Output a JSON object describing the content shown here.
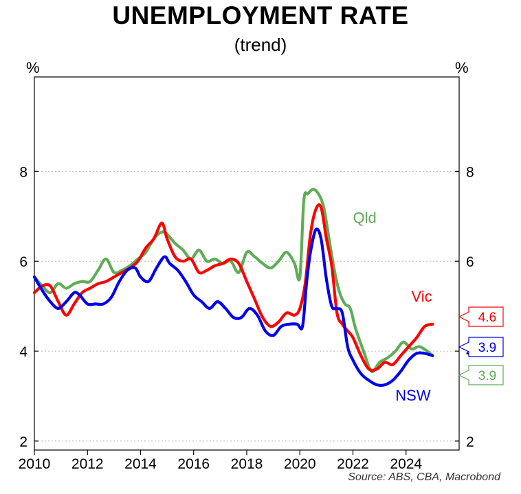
{
  "chart_data": {
    "type": "line",
    "title": "UNEMPLOYMENT RATE",
    "subtitle": "(trend)",
    "y_unit_left": "%",
    "y_unit_right": "%",
    "ylim": [
      1.8,
      10.1
    ],
    "xlim": [
      2010,
      2026
    ],
    "y_ticks": [
      2,
      4,
      6,
      8
    ],
    "x_ticks": [
      2010,
      2012,
      2014,
      2016,
      2018,
      2020,
      2022,
      2024
    ],
    "grid": "horizontal dotted",
    "source": "Source: ABS, CBA, Macrobond",
    "series": [
      {
        "name": "NSW",
        "color": "#0000ee",
        "end_value": "3.9",
        "x": [
          2010.0,
          2010.3,
          2010.6,
          2010.9,
          2011.2,
          2011.5,
          2011.7,
          2012.0,
          2012.3,
          2012.6,
          2012.9,
          2013.2,
          2013.5,
          2013.8,
          2014.0,
          2014.3,
          2014.6,
          2014.9,
          2015.1,
          2015.4,
          2015.7,
          2016.0,
          2016.3,
          2016.6,
          2016.9,
          2017.2,
          2017.5,
          2017.8,
          2018.1,
          2018.4,
          2018.7,
          2019.0,
          2019.3,
          2019.6,
          2019.9,
          2020.1,
          2020.25,
          2020.4,
          2020.6,
          2020.8,
          2021.0,
          2021.2,
          2021.4,
          2021.6,
          2021.8,
          2022.0,
          2022.3,
          2022.6,
          2022.9,
          2023.2,
          2023.5,
          2023.8,
          2024.1,
          2024.4,
          2024.7,
          2025.0
        ],
        "values": [
          5.65,
          5.35,
          5.1,
          4.95,
          5.1,
          5.3,
          5.25,
          5.05,
          5.05,
          5.05,
          5.2,
          5.55,
          5.8,
          5.85,
          5.65,
          5.55,
          5.85,
          6.1,
          5.95,
          5.8,
          5.55,
          5.25,
          5.1,
          4.95,
          5.1,
          4.95,
          4.75,
          4.75,
          4.95,
          4.8,
          4.45,
          4.35,
          4.55,
          4.6,
          4.6,
          4.55,
          5.5,
          6.2,
          6.7,
          6.5,
          5.6,
          5.0,
          4.95,
          4.85,
          4.1,
          3.8,
          3.5,
          3.35,
          3.25,
          3.25,
          3.35,
          3.55,
          3.8,
          3.95,
          3.95,
          3.9
        ]
      },
      {
        "name": "Vic",
        "color": "#ff0000",
        "end_value": "4.6",
        "x": [
          2010.0,
          2010.3,
          2010.6,
          2010.9,
          2011.2,
          2011.5,
          2011.8,
          2012.1,
          2012.4,
          2012.7,
          2013.0,
          2013.3,
          2013.6,
          2013.9,
          2014.2,
          2014.5,
          2014.8,
          2015.0,
          2015.3,
          2015.6,
          2015.9,
          2016.2,
          2016.5,
          2016.8,
          2017.1,
          2017.4,
          2017.7,
          2018.0,
          2018.3,
          2018.6,
          2018.9,
          2019.2,
          2019.5,
          2019.8,
          2020.0,
          2020.2,
          2020.4,
          2020.6,
          2020.8,
          2021.0,
          2021.2,
          2021.4,
          2021.6,
          2021.8,
          2022.0,
          2022.3,
          2022.6,
          2022.9,
          2023.2,
          2023.5,
          2023.8,
          2024.1,
          2024.4,
          2024.7,
          2025.0
        ],
        "values": [
          5.3,
          5.45,
          5.45,
          5.1,
          4.8,
          5.05,
          5.3,
          5.4,
          5.5,
          5.55,
          5.65,
          5.75,
          5.85,
          6.0,
          6.3,
          6.5,
          6.85,
          6.5,
          6.1,
          6.0,
          6.05,
          5.75,
          5.8,
          5.9,
          5.95,
          6.05,
          5.95,
          5.55,
          5.15,
          4.75,
          4.55,
          4.65,
          4.85,
          4.8,
          4.95,
          5.5,
          6.6,
          7.15,
          7.2,
          6.5,
          5.9,
          4.85,
          4.6,
          4.45,
          4.3,
          3.9,
          3.6,
          3.6,
          3.75,
          3.7,
          3.9,
          4.1,
          4.3,
          4.55,
          4.6
        ]
      },
      {
        "name": "Qld",
        "color": "#5fad56",
        "end_value": "3.9",
        "x": [
          2010.0,
          2010.3,
          2010.6,
          2010.9,
          2011.2,
          2011.5,
          2011.8,
          2012.1,
          2012.4,
          2012.7,
          2013.0,
          2013.3,
          2013.6,
          2013.9,
          2014.2,
          2014.5,
          2014.8,
          2015.0,
          2015.3,
          2015.6,
          2015.9,
          2016.2,
          2016.5,
          2016.8,
          2017.1,
          2017.4,
          2017.7,
          2018.0,
          2018.3,
          2018.6,
          2018.9,
          2019.2,
          2019.5,
          2019.8,
          2020.0,
          2020.15,
          2020.3,
          2020.5,
          2020.7,
          2020.9,
          2021.1,
          2021.3,
          2021.5,
          2021.7,
          2021.9,
          2022.1,
          2022.4,
          2022.7,
          2023.0,
          2023.3,
          2023.6,
          2023.9,
          2024.2,
          2024.5,
          2024.8,
          2025.0
        ],
        "values": [
          5.65,
          5.45,
          5.3,
          5.5,
          5.4,
          5.5,
          5.55,
          5.55,
          5.8,
          6.05,
          5.75,
          5.8,
          5.9,
          6.05,
          6.2,
          6.5,
          6.65,
          6.6,
          6.4,
          6.25,
          6.05,
          6.25,
          6.0,
          6.05,
          5.95,
          6.0,
          5.75,
          6.2,
          6.1,
          5.95,
          5.85,
          6.0,
          6.2,
          5.95,
          5.65,
          7.35,
          7.5,
          7.6,
          7.5,
          7.2,
          6.5,
          5.8,
          5.3,
          5.05,
          4.95,
          4.5,
          4.0,
          3.55,
          3.75,
          3.85,
          4.0,
          4.2,
          4.05,
          4.1,
          4.0,
          3.9
        ]
      }
    ],
    "series_labels": [
      {
        "name": "Qld",
        "text": "Qld",
        "x": 2022.0,
        "y": 6.85
      },
      {
        "name": "Vic",
        "text": "Vic",
        "x": 2024.2,
        "y": 5.1
      },
      {
        "name": "NSW",
        "text": "NSW",
        "x": 2023.6,
        "y": 2.9
      }
    ]
  }
}
